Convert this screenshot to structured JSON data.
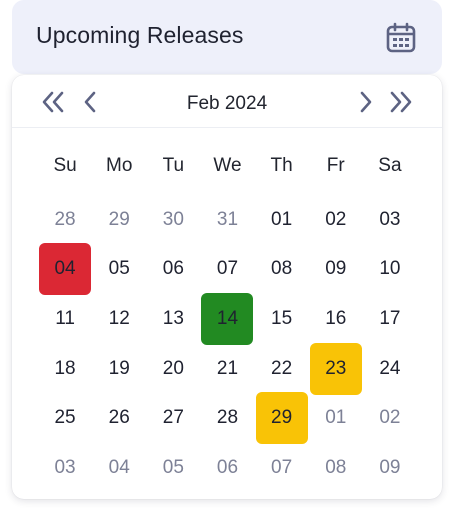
{
  "header": {
    "title": "Upcoming Releases",
    "icon": "calendar-icon"
  },
  "nav": {
    "title": "Feb 2024",
    "prev_year_icon": "double-chevron-left-icon",
    "prev_month_icon": "chevron-left-icon",
    "next_month_icon": "chevron-right-icon",
    "next_year_icon": "double-chevron-right-icon"
  },
  "colors": {
    "header_bg": "#eef0fa",
    "icon": "#5d6383",
    "red": "#db2834",
    "green": "#228a22",
    "yellow": "#f9c306",
    "muted_text": "#7d8196"
  },
  "weekdays": [
    "Su",
    "Mo",
    "Tu",
    "We",
    "Th",
    "Fr",
    "Sa"
  ],
  "days": [
    {
      "label": "28",
      "outside": true
    },
    {
      "label": "29",
      "outside": true
    },
    {
      "label": "30",
      "outside": true
    },
    {
      "label": "31",
      "outside": true
    },
    {
      "label": "01"
    },
    {
      "label": "02"
    },
    {
      "label": "03"
    },
    {
      "label": "04",
      "highlight": "red"
    },
    {
      "label": "05"
    },
    {
      "label": "06"
    },
    {
      "label": "07"
    },
    {
      "label": "08"
    },
    {
      "label": "09"
    },
    {
      "label": "10"
    },
    {
      "label": "11"
    },
    {
      "label": "12"
    },
    {
      "label": "13"
    },
    {
      "label": "14",
      "highlight": "green"
    },
    {
      "label": "15"
    },
    {
      "label": "16"
    },
    {
      "label": "17"
    },
    {
      "label": "18"
    },
    {
      "label": "19"
    },
    {
      "label": "20"
    },
    {
      "label": "21"
    },
    {
      "label": "22"
    },
    {
      "label": "23",
      "highlight": "yellow"
    },
    {
      "label": "24"
    },
    {
      "label": "25"
    },
    {
      "label": "26"
    },
    {
      "label": "27"
    },
    {
      "label": "28"
    },
    {
      "label": "29",
      "highlight": "yellow"
    },
    {
      "label": "01",
      "outside": true
    },
    {
      "label": "02",
      "outside": true
    },
    {
      "label": "03",
      "outside": true
    },
    {
      "label": "04",
      "outside": true
    },
    {
      "label": "05",
      "outside": true
    },
    {
      "label": "06",
      "outside": true
    },
    {
      "label": "07",
      "outside": true
    },
    {
      "label": "08",
      "outside": true
    },
    {
      "label": "09",
      "outside": true
    }
  ]
}
